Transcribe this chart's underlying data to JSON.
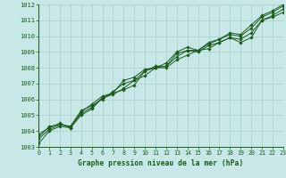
{
  "title": "Graphe pression niveau de la mer (hPa)",
  "bg_color": "#c8e8e8",
  "grid_color": "#aacccc",
  "line_color": "#1a5c1a",
  "xlim": [
    0,
    23
  ],
  "ylim": [
    1003,
    1012
  ],
  "xticks": [
    0,
    1,
    2,
    3,
    4,
    5,
    6,
    7,
    8,
    9,
    10,
    11,
    12,
    13,
    14,
    15,
    16,
    17,
    18,
    19,
    20,
    21,
    22,
    23
  ],
  "yticks": [
    1003,
    1004,
    1005,
    1006,
    1007,
    1008,
    1009,
    1010,
    1011,
    1012
  ],
  "series": [
    [
      1003.2,
      1004.0,
      1004.3,
      1004.2,
      1005.0,
      1005.4,
      1006.1,
      1006.4,
      1006.6,
      1006.9,
      1007.8,
      1008.0,
      1008.0,
      1008.5,
      1008.8,
      1009.1,
      1009.2,
      1009.6,
      1009.9,
      1009.6,
      1009.9,
      1011.0,
      1011.2,
      1011.5
    ],
    [
      1003.5,
      1004.1,
      1004.4,
      1004.3,
      1005.1,
      1005.5,
      1006.1,
      1006.3,
      1006.7,
      1007.2,
      1007.5,
      1008.0,
      1008.1,
      1008.7,
      1009.1,
      1009.0,
      1009.4,
      1009.6,
      1009.9,
      1009.8,
      1010.2,
      1011.0,
      1011.3,
      1011.7
    ],
    [
      1003.8,
      1004.2,
      1004.5,
      1004.2,
      1005.2,
      1005.7,
      1006.2,
      1006.4,
      1007.2,
      1007.4,
      1007.9,
      1008.0,
      1008.3,
      1009.0,
      1009.3,
      1009.1,
      1009.5,
      1009.8,
      1010.1,
      1010.0,
      1010.5,
      1011.2,
      1011.5,
      1011.9
    ],
    [
      1003.6,
      1004.3,
      1004.4,
      1004.3,
      1005.3,
      1005.6,
      1006.0,
      1006.5,
      1007.0,
      1007.2,
      1007.8,
      1008.1,
      1008.1,
      1008.9,
      1009.1,
      1009.1,
      1009.6,
      1009.8,
      1010.2,
      1010.1,
      1010.7,
      1011.3,
      1011.6,
      1012.0
    ]
  ]
}
